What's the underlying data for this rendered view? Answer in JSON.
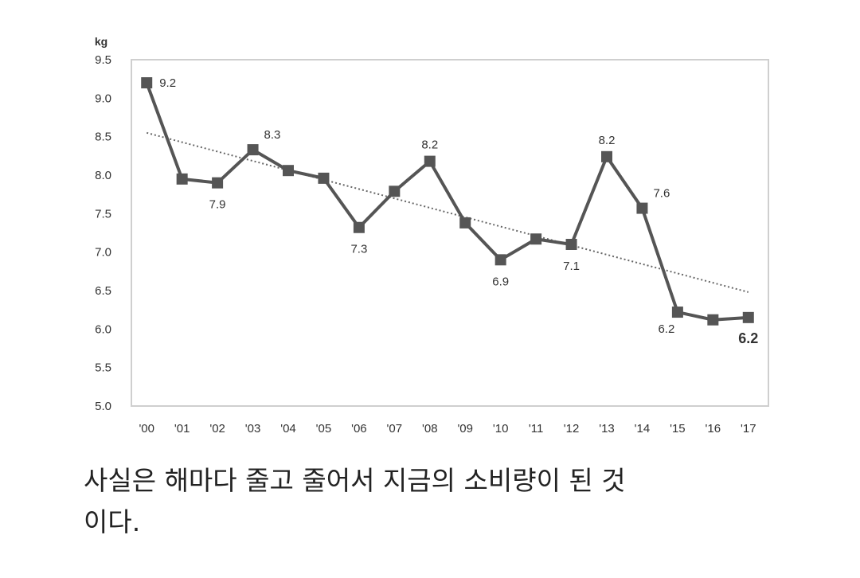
{
  "chart_data": {
    "type": "line",
    "ylabel": "kg",
    "ylim": [
      5.0,
      9.5
    ],
    "yticks": [
      "5.0",
      "5.5",
      "6.0",
      "6.5",
      "7.0",
      "7.5",
      "8.0",
      "8.5",
      "9.0",
      "9.5"
    ],
    "categories": [
      "'00",
      "'01",
      "'02",
      "'03",
      "'04",
      "'05",
      "'06",
      "'07",
      "'08",
      "'09",
      "'10",
      "'11",
      "'12",
      "'13",
      "'14",
      "'15",
      "'16",
      "'17"
    ],
    "values": [
      9.2,
      7.95,
      7.9,
      8.33,
      8.06,
      7.96,
      7.32,
      7.79,
      8.18,
      7.38,
      6.9,
      7.17,
      7.1,
      8.24,
      7.57,
      6.22,
      6.12,
      6.15
    ],
    "trendline": {
      "style": "dotted",
      "start": 8.55,
      "end": 6.48
    },
    "data_labels": [
      {
        "index": 0,
        "text": "9.2",
        "pos": "right"
      },
      {
        "index": 2,
        "text": "7.9",
        "pos": "below"
      },
      {
        "index": 3,
        "text": "8.3",
        "pos": "above-right"
      },
      {
        "index": 6,
        "text": "7.3",
        "pos": "below"
      },
      {
        "index": 8,
        "text": "8.2",
        "pos": "above"
      },
      {
        "index": 10,
        "text": "6.9",
        "pos": "below"
      },
      {
        "index": 12,
        "text": "7.1",
        "pos": "below"
      },
      {
        "index": 13,
        "text": "8.2",
        "pos": "above"
      },
      {
        "index": 14,
        "text": "7.6",
        "pos": "above-right"
      },
      {
        "index": 15,
        "text": "6.2",
        "pos": "below-left"
      },
      {
        "index": 17,
        "text": "6.2",
        "pos": "below",
        "bold": true
      }
    ],
    "colors": {
      "line": "#555555",
      "marker": "#555555",
      "trend": "#666666",
      "frame": "#cfcfcf"
    }
  },
  "caption": {
    "line1": "사실은 해마다 줄고 줄어서 지금의 소비량이 된 것",
    "line2": "이다."
  }
}
